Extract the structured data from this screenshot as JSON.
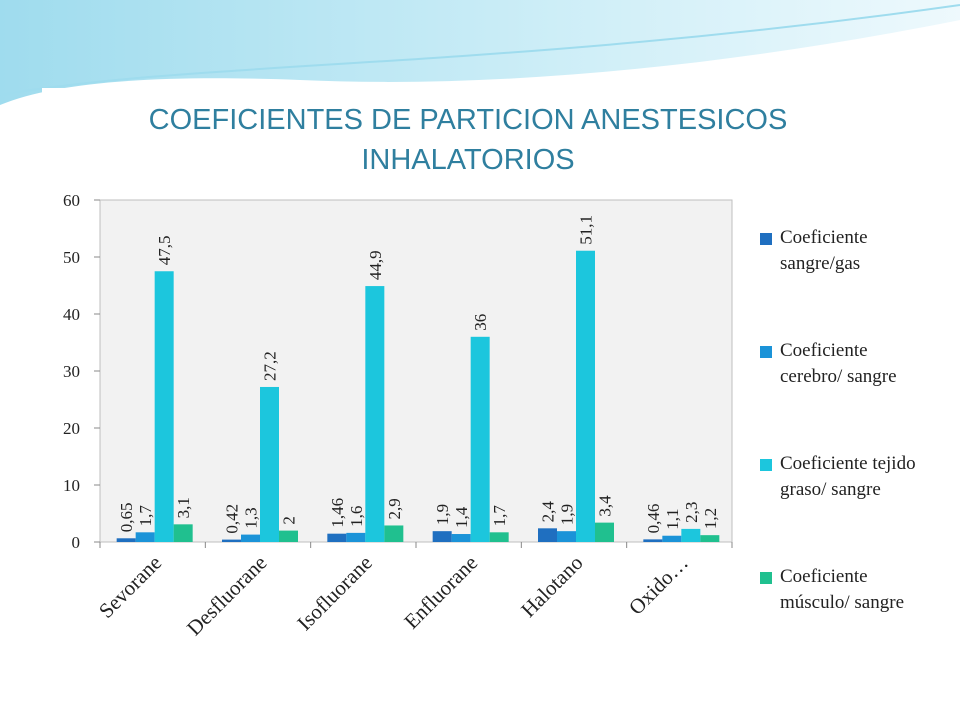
{
  "chart_data": {
    "type": "bar",
    "title": "COEFICIENTES DE PARTICION ANESTESICOS INHALATORIOS",
    "categories": [
      "Sevorane",
      "Desfluorane",
      "Isofluorane",
      "Enfluorane",
      "Halotano",
      "Oxido…"
    ],
    "series": [
      {
        "name": "Coeficiente sangre/gas",
        "color": "#1f6fc0",
        "values": [
          0.65,
          0.42,
          1.46,
          1.9,
          2.4,
          0.46
        ],
        "value_labels": [
          "0,65",
          "0,42",
          "1,46",
          "1,9",
          "2,4",
          "0,46"
        ]
      },
      {
        "name": "Coeficiente cerebro/ sangre",
        "color": "#1b93d8",
        "values": [
          1.7,
          1.3,
          1.6,
          1.4,
          1.9,
          1.1
        ],
        "value_labels": [
          "1,7",
          "1,3",
          "1,6",
          "1,4",
          "1,9",
          "1,1"
        ]
      },
      {
        "name": "Coeficiente tejido graso/ sangre",
        "color": "#1cc6dd",
        "values": [
          47.5,
          27.2,
          44.9,
          36,
          51.1,
          2.3
        ],
        "value_labels": [
          "47,5",
          "27,2",
          "44,9",
          "36",
          "51,1",
          "2,3"
        ]
      },
      {
        "name": "Coeficiente músculo/ sangre",
        "color": "#20c08f",
        "values": [
          3.1,
          2,
          2.9,
          1.7,
          3.4,
          1.2
        ],
        "value_labels": [
          "3,1",
          "2",
          "2,9",
          "1,7",
          "3,4",
          "1,2"
        ]
      }
    ],
    "ylim": [
      0,
      60
    ],
    "yticks": [
      0,
      10,
      20,
      30,
      40,
      50,
      60
    ],
    "grid": false
  }
}
